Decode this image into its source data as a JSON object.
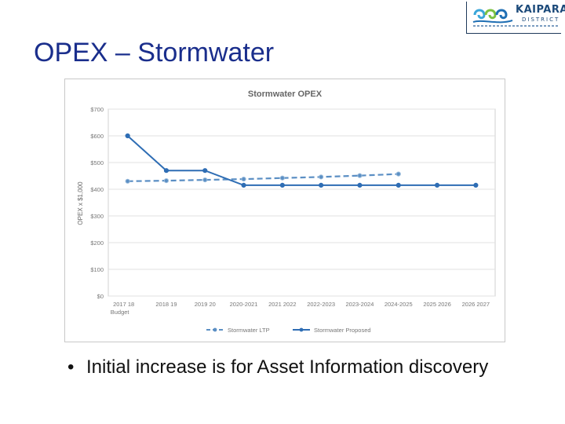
{
  "slide": {
    "title": "OPEX – Stormwater",
    "bullet_marker": "•",
    "bullet_text": "Initial increase is for Asset Information discovery"
  },
  "logo": {
    "name": "KAIPARA",
    "subtitle": "DISTRICT"
  },
  "chart_data": {
    "type": "line",
    "title": "Stormwater OPEX",
    "ylabel": "OPEX x $1,000",
    "xlabel": "",
    "categories": [
      "2017 18 Budget",
      "2018 19",
      "2019 20",
      "2020-2021",
      "2021 2022",
      "2022-2023",
      "2023-2024",
      "2024-2025",
      "2025 2026",
      "2026 2027"
    ],
    "y_ticks": [
      "$0",
      "$100",
      "$200",
      "$300",
      "$400",
      "$500",
      "$600",
      "$700"
    ],
    "ylim": [
      0,
      700
    ],
    "grid": true,
    "legend": "bottom",
    "series": [
      {
        "name": "Stormwater LTP",
        "style": "dashed",
        "color": "#5b8fc4",
        "values": [
          430,
          432,
          435,
          438,
          442,
          446,
          451,
          457,
          null,
          null
        ]
      },
      {
        "name": "Stormwater Proposed",
        "style": "solid",
        "color": "#2e6db4",
        "values": [
          600,
          470,
          470,
          415,
          415,
          415,
          415,
          415,
          415,
          415
        ]
      }
    ]
  }
}
